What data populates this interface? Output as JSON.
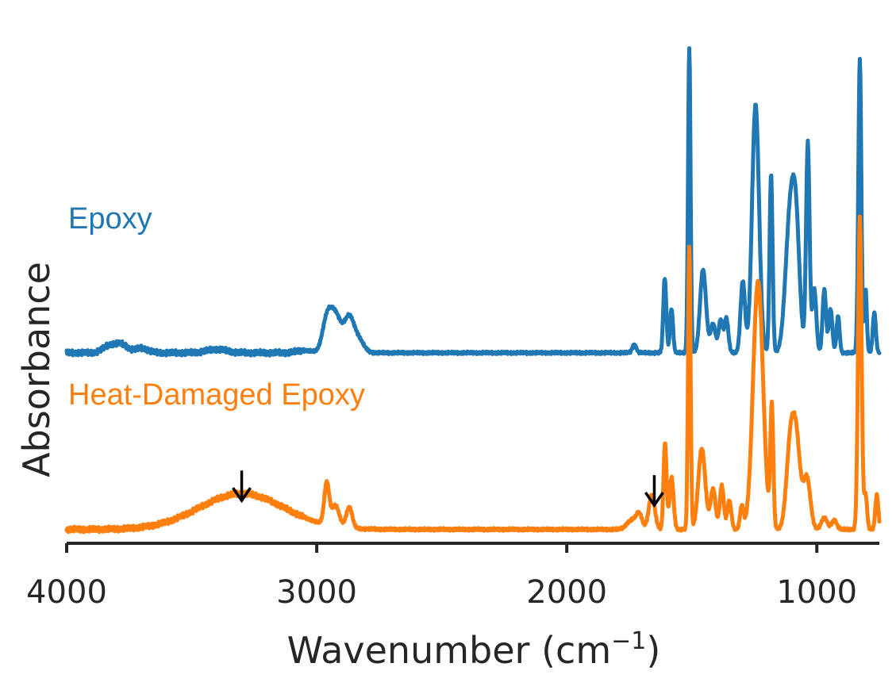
{
  "chart_data": {
    "type": "line",
    "title": "",
    "xlabel": "Wavenumber (cm",
    "xlabel_superscript": "−1",
    "xlabel_suffix": ")",
    "ylabel": "Absorbance",
    "xlim": [
      4000,
      750
    ],
    "ylim": [
      0,
      4.5
    ],
    "x_inverted": true,
    "grid": false,
    "yticks_visible": false,
    "xticks": [
      {
        "value": 4000,
        "label": "4000"
      },
      {
        "value": 3000,
        "label": "3000"
      },
      {
        "value": 2000,
        "label": "2000"
      },
      {
        "value": 1000,
        "label": "1000"
      }
    ],
    "series": [
      {
        "name": "Epoxy",
        "color": "#1f77b4",
        "baseline": 1.65,
        "peaks": [
          {
            "x": 3830,
            "h": 0.06,
            "w": 25
          },
          {
            "x": 3780,
            "h": 0.07,
            "w": 25
          },
          {
            "x": 3700,
            "h": 0.04,
            "w": 25
          },
          {
            "x": 3400,
            "h": 0.03,
            "w": 40
          },
          {
            "x": 3050,
            "h": 0.02,
            "w": 30
          },
          {
            "x": 2960,
            "h": 0.26,
            "w": 18
          },
          {
            "x": 2925,
            "h": 0.32,
            "w": 22
          },
          {
            "x": 2870,
            "h": 0.3,
            "w": 20
          },
          {
            "x": 2830,
            "h": 0.1,
            "w": 20
          },
          {
            "x": 1730,
            "h": 0.07,
            "w": 8
          },
          {
            "x": 1608,
            "h": 0.65,
            "w": 6
          },
          {
            "x": 1581,
            "h": 0.38,
            "w": 6
          },
          {
            "x": 1510,
            "h": 2.65,
            "w": 5
          },
          {
            "x": 1455,
            "h": 0.72,
            "w": 12
          },
          {
            "x": 1415,
            "h": 0.25,
            "w": 10
          },
          {
            "x": 1385,
            "h": 0.28,
            "w": 8
          },
          {
            "x": 1362,
            "h": 0.3,
            "w": 8
          },
          {
            "x": 1296,
            "h": 0.62,
            "w": 9
          },
          {
            "x": 1245,
            "h": 2.15,
            "w": 14
          },
          {
            "x": 1183,
            "h": 1.55,
            "w": 6
          },
          {
            "x": 1108,
            "h": 1.1,
            "w": 18
          },
          {
            "x": 1083,
            "h": 0.95,
            "w": 15
          },
          {
            "x": 1036,
            "h": 1.82,
            "w": 7
          },
          {
            "x": 1010,
            "h": 0.55,
            "w": 8
          },
          {
            "x": 970,
            "h": 0.55,
            "w": 7
          },
          {
            "x": 945,
            "h": 0.38,
            "w": 7
          },
          {
            "x": 915,
            "h": 0.32,
            "w": 6
          },
          {
            "x": 828,
            "h": 2.55,
            "w": 6
          },
          {
            "x": 805,
            "h": 0.55,
            "w": 5
          },
          {
            "x": 770,
            "h": 0.35,
            "w": 6
          }
        ]
      },
      {
        "name": "Heat-Damaged Epoxy",
        "color": "#ff7f0e",
        "baseline": 0.12,
        "peaks": [
          {
            "x": 3300,
            "h": 0.31,
            "w": 170
          },
          {
            "x": 2960,
            "h": 0.36,
            "w": 10
          },
          {
            "x": 2925,
            "h": 0.18,
            "w": 15
          },
          {
            "x": 2870,
            "h": 0.18,
            "w": 12
          },
          {
            "x": 1740,
            "h": 0.08,
            "w": 20
          },
          {
            "x": 1710,
            "h": 0.12,
            "w": 12
          },
          {
            "x": 1660,
            "h": 0.3,
            "w": 12
          },
          {
            "x": 1607,
            "h": 0.75,
            "w": 6
          },
          {
            "x": 1581,
            "h": 0.45,
            "w": 8
          },
          {
            "x": 1510,
            "h": 2.45,
            "w": 5
          },
          {
            "x": 1460,
            "h": 0.7,
            "w": 14
          },
          {
            "x": 1415,
            "h": 0.35,
            "w": 10
          },
          {
            "x": 1380,
            "h": 0.38,
            "w": 8
          },
          {
            "x": 1350,
            "h": 0.25,
            "w": 8
          },
          {
            "x": 1300,
            "h": 0.2,
            "w": 7
          },
          {
            "x": 1235,
            "h": 2.15,
            "w": 20
          },
          {
            "x": 1180,
            "h": 1.05,
            "w": 6
          },
          {
            "x": 1105,
            "h": 0.75,
            "w": 16
          },
          {
            "x": 1080,
            "h": 0.65,
            "w": 15
          },
          {
            "x": 1040,
            "h": 0.45,
            "w": 14
          },
          {
            "x": 970,
            "h": 0.1,
            "w": 12
          },
          {
            "x": 930,
            "h": 0.08,
            "w": 10
          },
          {
            "x": 828,
            "h": 2.7,
            "w": 7
          },
          {
            "x": 805,
            "h": 0.3,
            "w": 6
          },
          {
            "x": 760,
            "h": 0.3,
            "w": 6
          }
        ]
      }
    ],
    "annotations": [
      {
        "type": "arrow",
        "x": 3300,
        "y_tip": 0.37,
        "y_tail": 0.63,
        "color": "#000000"
      },
      {
        "type": "arrow",
        "x": 1650,
        "y_tip": 0.33,
        "y_tail": 0.59,
        "color": "#000000"
      }
    ]
  }
}
